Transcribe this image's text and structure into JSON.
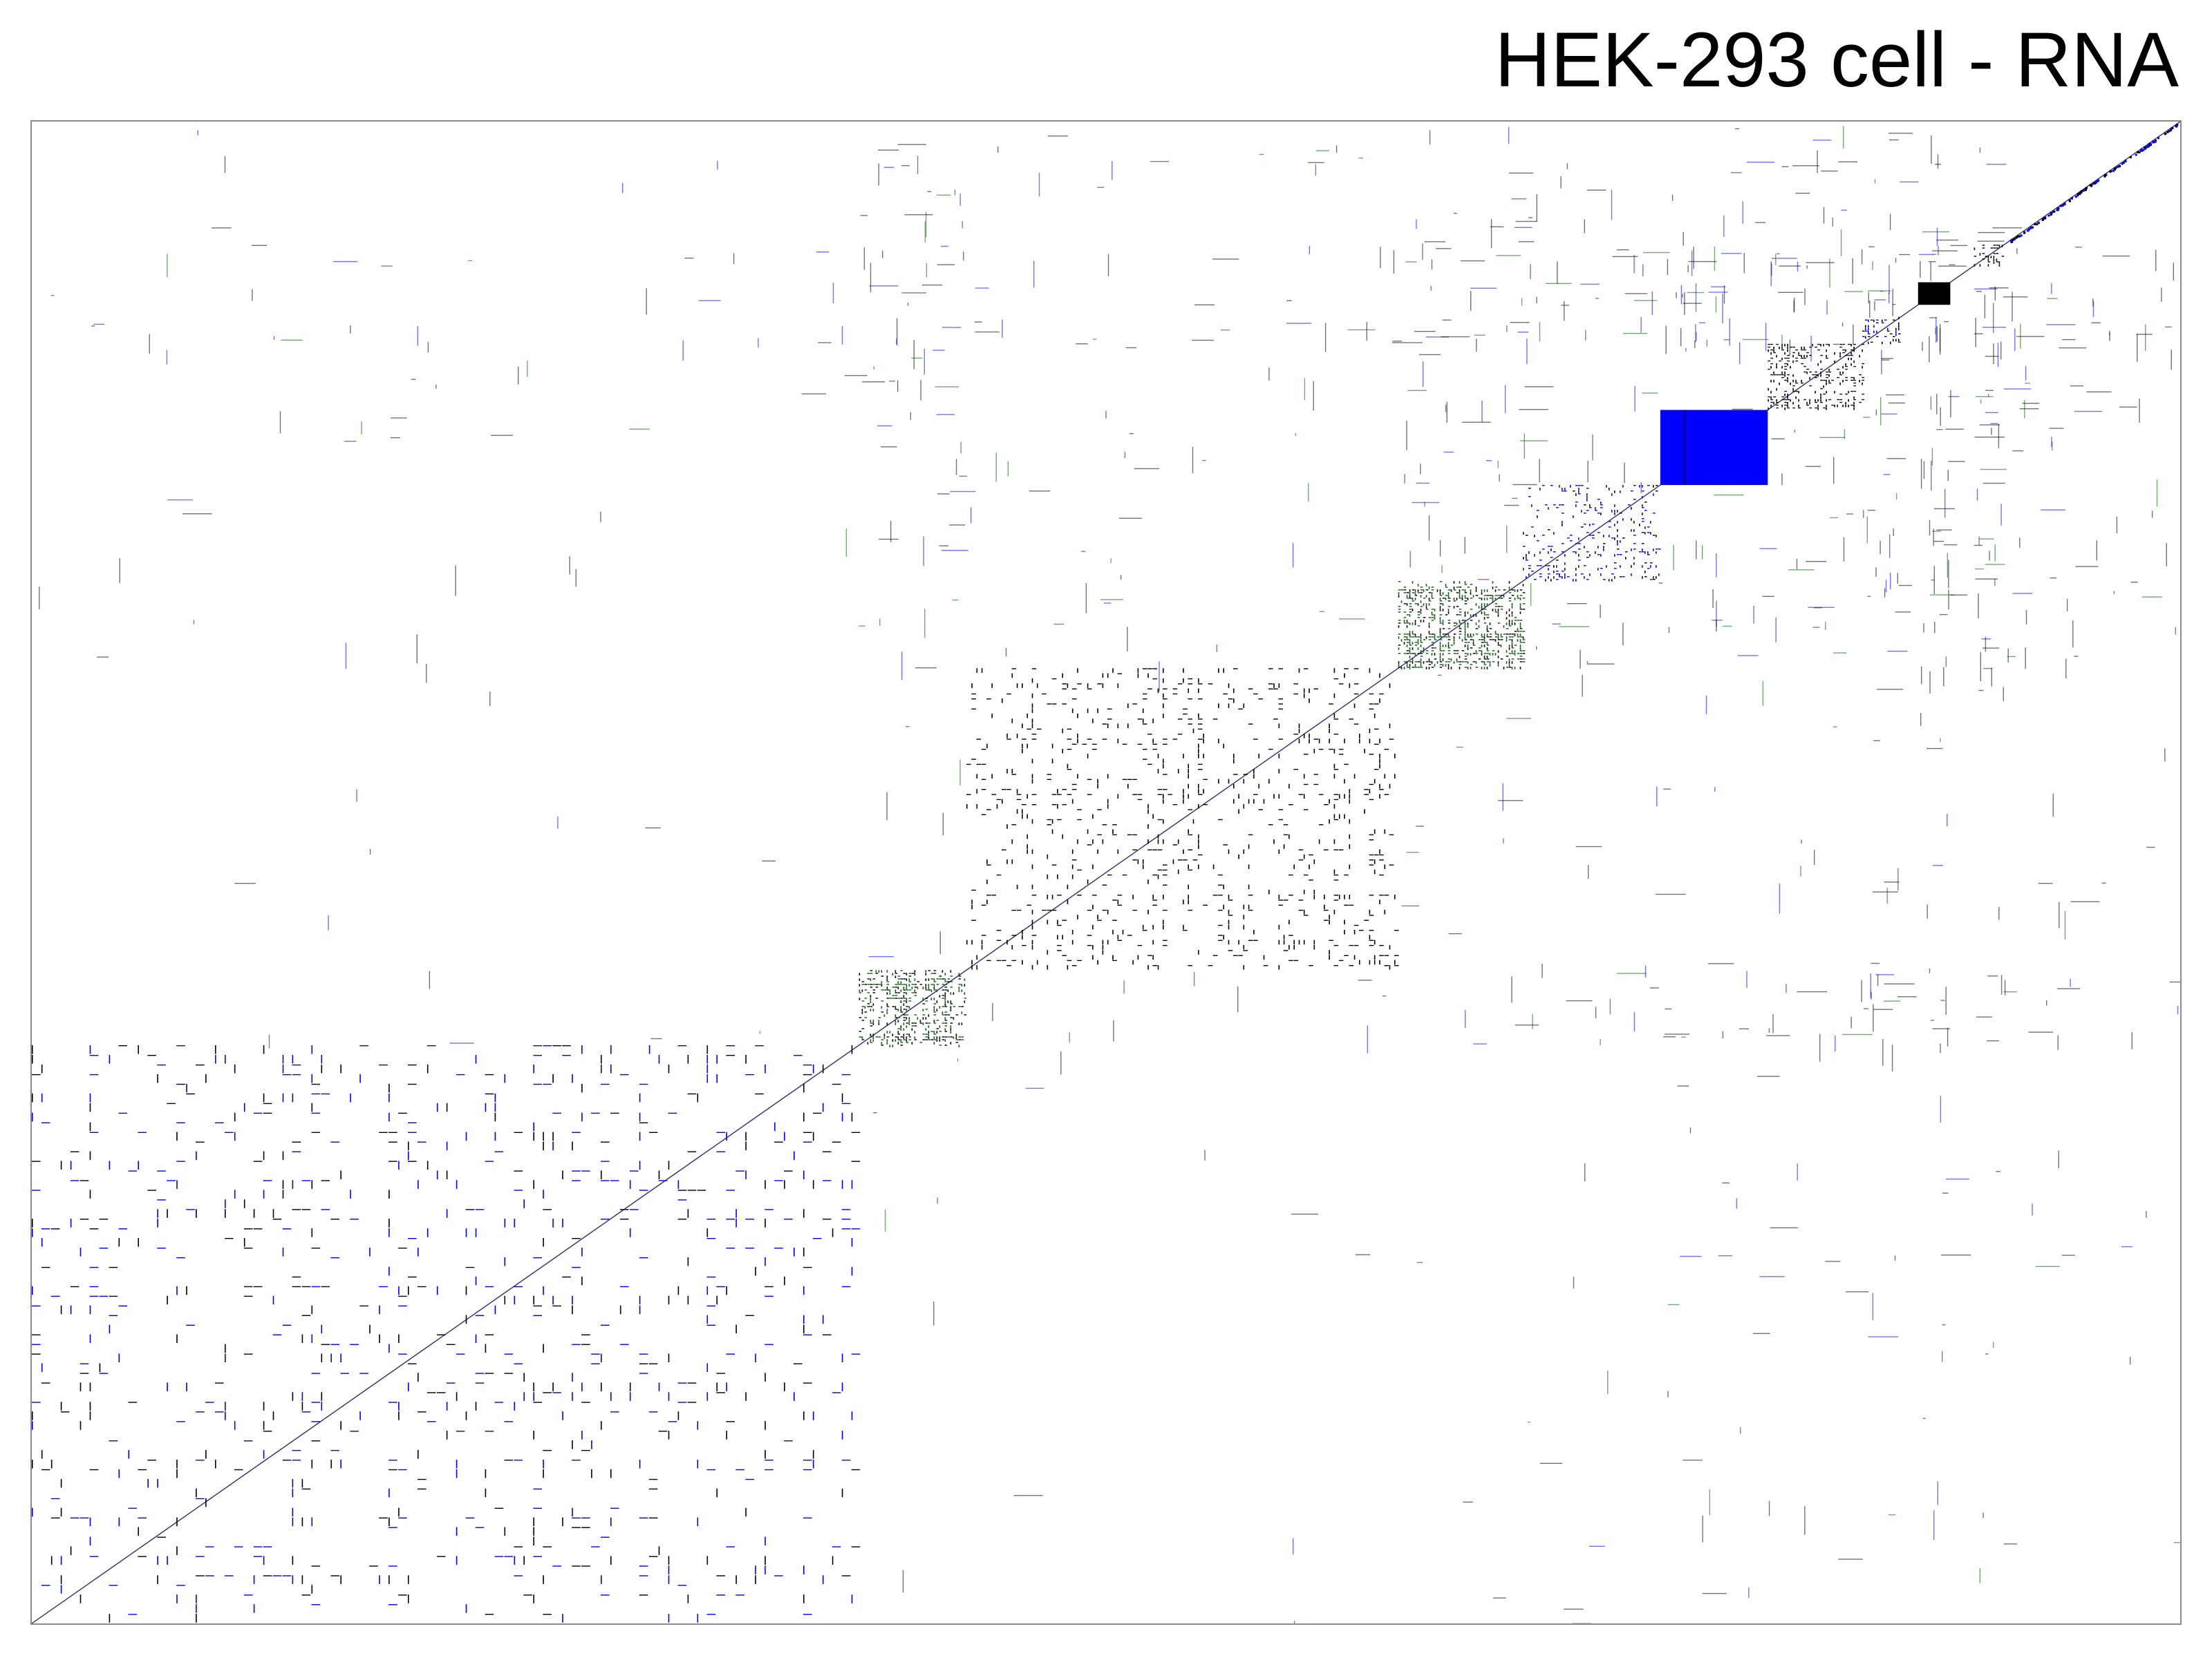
{
  "page": {
    "title": "HEK-293 cell - RNA"
  },
  "colors": {
    "black": "#000000",
    "blue": "#0000ff",
    "green": "#006400",
    "frame": "#8c8c8c",
    "background": "#ffffff"
  },
  "chart_data": {
    "type": "heatmap",
    "description_of_encoding": "Sparse square correlation/interaction matrix ordered into diagonal clusters; dot color encodes category (black, blue, green).",
    "axes": {
      "labels": false,
      "ticks": false
    },
    "grid": false,
    "legend": "none",
    "matrix_extent": [
      0,
      1
    ],
    "clusters": [
      {
        "id": 1,
        "span": [
          0.0,
          0.385
        ],
        "color": "blue",
        "density": 0.3,
        "mixed_black": 0.45
      },
      {
        "id": 2,
        "span": [
          0.385,
          0.435
        ],
        "color": "green",
        "density": 0.75,
        "mixed_black": 0.45
      },
      {
        "id": 3,
        "span": [
          0.435,
          0.636
        ],
        "color": "black",
        "density": 0.3,
        "mixed_black": 0.8
      },
      {
        "id": 4,
        "span": [
          0.636,
          0.694
        ],
        "color": "green",
        "density": 0.9,
        "mixed_black": 0.35
      },
      {
        "id": 5,
        "span": [
          0.694,
          0.758
        ],
        "color": "blue",
        "density": 0.3,
        "mixed_black": 0.25
      },
      {
        "id": 6,
        "span": [
          0.758,
          0.808
        ],
        "color": "blue",
        "density": 1.0,
        "mixed_black": 0.0,
        "solid": true
      },
      {
        "id": 7,
        "span": [
          0.808,
          0.852
        ],
        "color": "black",
        "density": 0.55,
        "mixed_black": 1.0
      },
      {
        "id": 8,
        "span": [
          0.852,
          0.87
        ],
        "color": "blue",
        "density": 0.35,
        "mixed_black": 0.6
      },
      {
        "id": 9,
        "span": [
          0.878,
          0.893
        ],
        "color": "black",
        "density": 1.0,
        "mixed_black": 1.0,
        "solid": true
      },
      {
        "id": 10,
        "span": [
          0.904,
          0.918
        ],
        "color": "black",
        "density": 0.6,
        "mixed_black": 0.8
      },
      {
        "id": 11,
        "span": [
          0.918,
          1.0
        ],
        "color": "blue",
        "density": 0.5,
        "mixed_black": 0.5,
        "diagonal_only": true
      }
    ]
  }
}
